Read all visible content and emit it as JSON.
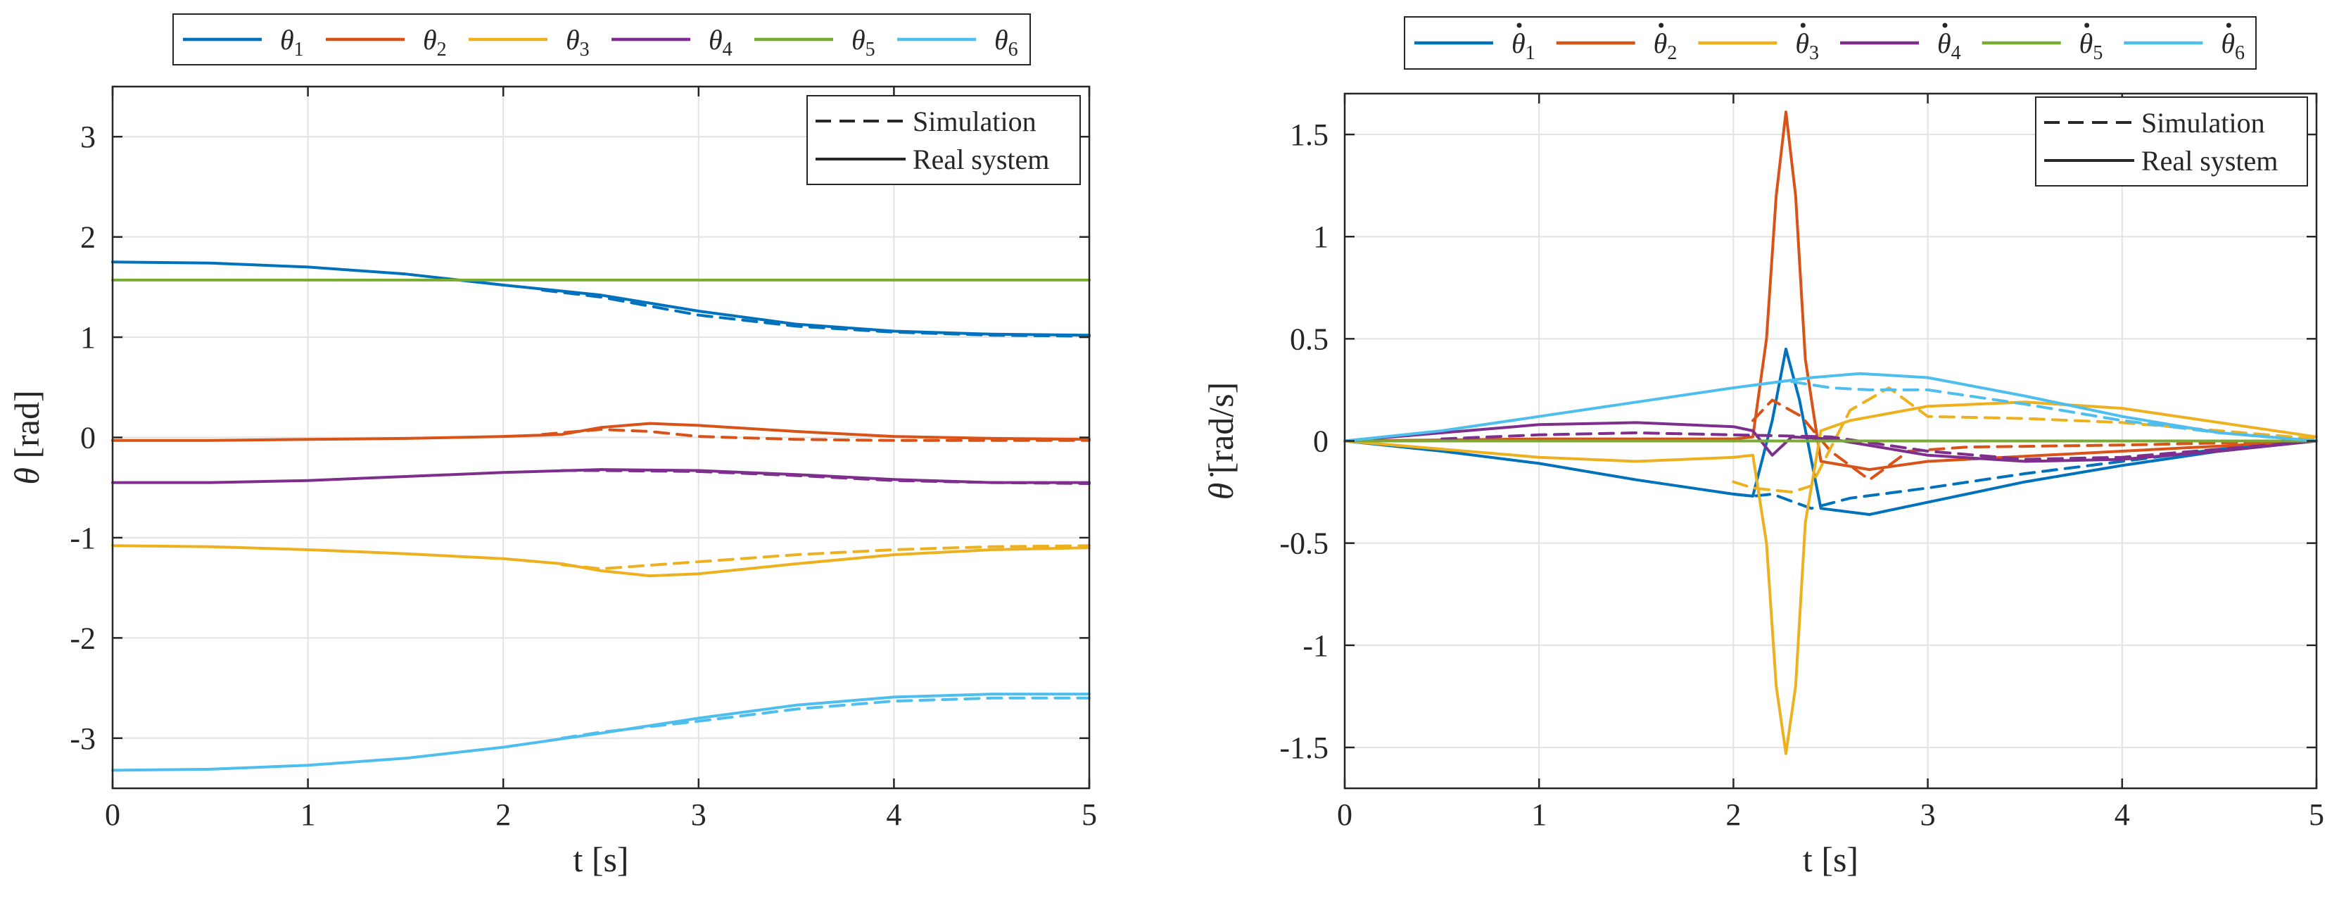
{
  "chart_data": [
    {
      "type": "line",
      "name": "joint-angles",
      "xlabel": "t [s]",
      "ylabel_symbol": "θ",
      "ylabel_unit": " [rad]",
      "xlim": [
        0,
        5
      ],
      "ylim": [
        -3.5,
        3.5
      ],
      "xticks": [
        0,
        1,
        2,
        3,
        4,
        5
      ],
      "xtick_labels": [
        "0",
        "1",
        "2",
        "3",
        "4",
        "5"
      ],
      "yticks": [
        -3,
        -2,
        -1,
        0,
        1,
        2,
        3
      ],
      "ytick_labels": [
        "-3",
        "-2",
        "-1",
        "0",
        "1",
        "2",
        "3"
      ],
      "grid": true,
      "legend_placement": "above",
      "style_legend_placement": "top-right",
      "series_legend": [
        {
          "base": "θ",
          "sub": "1",
          "dot": false,
          "color": "#0072BD"
        },
        {
          "base": "θ",
          "sub": "2",
          "dot": false,
          "color": "#D95319"
        },
        {
          "base": "θ",
          "sub": "3",
          "dot": false,
          "color": "#EDB120"
        },
        {
          "base": "θ",
          "sub": "4",
          "dot": false,
          "color": "#7E2F8E"
        },
        {
          "base": "θ",
          "sub": "5",
          "dot": false,
          "color": "#77AC30"
        },
        {
          "base": "θ",
          "sub": "6",
          "dot": false,
          "color": "#4DBEEE"
        }
      ],
      "style_legend": [
        {
          "label": "Simulation",
          "dashed": true
        },
        {
          "label": "Real system",
          "dashed": false
        }
      ],
      "series": [
        {
          "name": "θ1 Real system",
          "color": "#0072BD",
          "dashed": false,
          "x": [
            0,
            0.5,
            1,
            1.5,
            2,
            2.5,
            3,
            3.5,
            4,
            4.5,
            5
          ],
          "y": [
            1.75,
            1.74,
            1.7,
            1.63,
            1.52,
            1.42,
            1.26,
            1.13,
            1.06,
            1.03,
            1.02
          ]
        },
        {
          "name": "θ1 Simulation",
          "color": "#0072BD",
          "dashed": true,
          "x": [
            2.2,
            2.5,
            3,
            3.5,
            4,
            4.5,
            5
          ],
          "y": [
            1.47,
            1.4,
            1.22,
            1.11,
            1.05,
            1.02,
            1.01
          ]
        },
        {
          "name": "θ2 Real system",
          "color": "#D95319",
          "dashed": false,
          "x": [
            0,
            0.5,
            1,
            1.5,
            2,
            2.3,
            2.5,
            2.75,
            3,
            3.5,
            4,
            4.5,
            5
          ],
          "y": [
            -0.03,
            -0.03,
            -0.02,
            -0.01,
            0.01,
            0.03,
            0.1,
            0.14,
            0.12,
            0.06,
            0.01,
            -0.01,
            -0.02
          ]
        },
        {
          "name": "θ2 Simulation",
          "color": "#D95319",
          "dashed": true,
          "x": [
            2.2,
            2.5,
            2.75,
            3,
            3.5,
            4,
            4.5,
            5
          ],
          "y": [
            0.03,
            0.08,
            0.06,
            0.01,
            -0.02,
            -0.03,
            -0.03,
            -0.03
          ]
        },
        {
          "name": "θ3 Real system",
          "color": "#EDB120",
          "dashed": false,
          "x": [
            0,
            0.5,
            1,
            1.5,
            2,
            2.3,
            2.5,
            2.75,
            3,
            3.5,
            4,
            4.5,
            5
          ],
          "y": [
            -1.08,
            -1.09,
            -1.12,
            -1.16,
            -1.21,
            -1.26,
            -1.33,
            -1.38,
            -1.36,
            -1.26,
            -1.17,
            -1.12,
            -1.1
          ]
        },
        {
          "name": "θ3 Simulation",
          "color": "#EDB120",
          "dashed": true,
          "x": [
            2.3,
            2.5,
            3,
            3.5,
            4,
            4.5,
            5
          ],
          "y": [
            -1.27,
            -1.31,
            -1.24,
            -1.17,
            -1.12,
            -1.09,
            -1.08
          ]
        },
        {
          "name": "θ4 Real system",
          "color": "#7E2F8E",
          "dashed": false,
          "x": [
            0,
            0.5,
            1,
            1.5,
            2,
            2.5,
            3,
            3.5,
            4,
            4.5,
            5
          ],
          "y": [
            -0.45,
            -0.45,
            -0.43,
            -0.39,
            -0.35,
            -0.32,
            -0.33,
            -0.37,
            -0.42,
            -0.45,
            -0.45
          ]
        },
        {
          "name": "θ4 Simulation",
          "color": "#7E2F8E",
          "dashed": true,
          "x": [
            2.3,
            2.5,
            3,
            3.5,
            4,
            4.5,
            5
          ],
          "y": [
            -0.33,
            -0.33,
            -0.34,
            -0.38,
            -0.43,
            -0.45,
            -0.46
          ]
        },
        {
          "name": "θ5 Real system",
          "color": "#77AC30",
          "dashed": false,
          "x": [
            0,
            5
          ],
          "y": [
            1.57,
            1.57
          ]
        },
        {
          "name": "θ6 Real system",
          "color": "#4DBEEE",
          "dashed": false,
          "x": [
            0,
            0.5,
            1,
            1.5,
            2,
            2.5,
            3,
            3.5,
            4,
            4.5,
            5
          ],
          "y": [
            -3.32,
            -3.31,
            -3.27,
            -3.2,
            -3.09,
            -2.95,
            -2.8,
            -2.67,
            -2.59,
            -2.56,
            -2.56
          ]
        },
        {
          "name": "θ6 Simulation",
          "color": "#4DBEEE",
          "dashed": true,
          "x": [
            2.3,
            2.5,
            3,
            3.5,
            4,
            4.5,
            5
          ],
          "y": [
            -3.0,
            -2.94,
            -2.83,
            -2.71,
            -2.63,
            -2.6,
            -2.6
          ]
        }
      ]
    },
    {
      "type": "line",
      "name": "joint-velocities",
      "xlabel": "t [s]",
      "ylabel_symbol": "θ̇",
      "ylabel_unit": " [rad/s]",
      "xlim": [
        0,
        5
      ],
      "ylim": [
        -1.7,
        1.7
      ],
      "xticks": [
        0,
        1,
        2,
        3,
        4,
        5
      ],
      "xtick_labels": [
        "0",
        "1",
        "2",
        "3",
        "4",
        "5"
      ],
      "yticks": [
        -1.5,
        -1,
        -0.5,
        0,
        0.5,
        1,
        1.5
      ],
      "ytick_labels": [
        "-1.5",
        "-1",
        "-0.5",
        "0",
        "0.5",
        "1",
        "1.5"
      ],
      "grid": true,
      "legend_placement": "above",
      "style_legend_placement": "top-right",
      "series_legend": [
        {
          "base": "θ",
          "sub": "1",
          "dot": true,
          "color": "#0072BD"
        },
        {
          "base": "θ",
          "sub": "2",
          "dot": true,
          "color": "#D95319"
        },
        {
          "base": "θ",
          "sub": "3",
          "dot": true,
          "color": "#EDB120"
        },
        {
          "base": "θ",
          "sub": "4",
          "dot": true,
          "color": "#7E2F8E"
        },
        {
          "base": "θ",
          "sub": "5",
          "dot": true,
          "color": "#77AC30"
        },
        {
          "base": "θ",
          "sub": "6",
          "dot": true,
          "color": "#4DBEEE"
        }
      ],
      "style_legend": [
        {
          "label": "Simulation",
          "dashed": true
        },
        {
          "label": "Real system",
          "dashed": false
        }
      ],
      "series": [
        {
          "name": "θ̇1 Real system",
          "color": "#0072BD",
          "dashed": false,
          "x": [
            0,
            0.5,
            1,
            1.5,
            2,
            2.1,
            2.2,
            2.27,
            2.34,
            2.45,
            2.7,
            3,
            3.5,
            4,
            4.5,
            5
          ],
          "y": [
            0,
            -0.05,
            -0.11,
            -0.19,
            -0.26,
            -0.27,
            0.1,
            0.45,
            0.2,
            -0.33,
            -0.36,
            -0.3,
            -0.2,
            -0.12,
            -0.05,
            0
          ]
        },
        {
          "name": "θ̇1 Simulation",
          "color": "#0072BD",
          "dashed": true,
          "x": [
            2.0,
            2.1,
            2.2,
            2.4,
            2.6,
            3.0,
            3.5,
            4.0,
            4.5,
            5.0
          ],
          "y": [
            -0.26,
            -0.27,
            -0.26,
            -0.33,
            -0.28,
            -0.23,
            -0.16,
            -0.1,
            -0.04,
            0
          ]
        },
        {
          "name": "θ̇2 Real system",
          "color": "#D95319",
          "dashed": false,
          "x": [
            0,
            1,
            2,
            2.1,
            2.17,
            2.22,
            2.27,
            2.32,
            2.37,
            2.45,
            2.7,
            3,
            4,
            5
          ],
          "y": [
            0,
            0.01,
            0.01,
            0.02,
            0.5,
            1.2,
            1.61,
            1.2,
            0.4,
            -0.1,
            -0.14,
            -0.1,
            -0.05,
            0
          ]
        },
        {
          "name": "θ̇2 Simulation",
          "color": "#D95319",
          "dashed": true,
          "x": [
            2.1,
            2.2,
            2.35,
            2.5,
            2.7,
            2.9,
            3.2,
            4.0,
            4.5,
            5.0
          ],
          "y": [
            0.1,
            0.2,
            0.12,
            -0.05,
            -0.19,
            -0.05,
            -0.03,
            -0.02,
            -0.01,
            0
          ]
        },
        {
          "name": "θ̇3 Real system",
          "color": "#EDB120",
          "dashed": false,
          "x": [
            0,
            0.5,
            1,
            1.5,
            2,
            2.1,
            2.17,
            2.22,
            2.27,
            2.32,
            2.37,
            2.45,
            2.6,
            3,
            3.5,
            4,
            4.5,
            5
          ],
          "y": [
            0,
            -0.04,
            -0.08,
            -0.1,
            -0.08,
            -0.07,
            -0.5,
            -1.2,
            -1.53,
            -1.2,
            -0.4,
            0.05,
            0.1,
            0.17,
            0.19,
            0.16,
            0.09,
            0.02
          ]
        },
        {
          "name": "θ̇3 Simulation",
          "color": "#EDB120",
          "dashed": true,
          "x": [
            2.0,
            2.1,
            2.3,
            2.4,
            2.6,
            2.8,
            3.0,
            3.5,
            4.0,
            4.5,
            5.0
          ],
          "y": [
            -0.2,
            -0.23,
            -0.25,
            -0.22,
            0.15,
            0.26,
            0.12,
            0.11,
            0.09,
            0.05,
            0.01
          ]
        },
        {
          "name": "θ̇4 Real system",
          "color": "#7E2F8E",
          "dashed": false,
          "x": [
            0,
            0.5,
            1,
            1.5,
            2,
            2.1,
            2.2,
            2.3,
            2.5,
            3,
            3.5,
            4,
            4.5,
            5
          ],
          "y": [
            0,
            0.04,
            0.08,
            0.09,
            0.07,
            0.05,
            -0.07,
            0.02,
            0.01,
            -0.07,
            -0.1,
            -0.09,
            -0.05,
            0
          ]
        },
        {
          "name": "θ̇4 Simulation",
          "color": "#7E2F8E",
          "dashed": true,
          "x": [
            0.5,
            1,
            1.5,
            2,
            2.5,
            3,
            3.5,
            4,
            4.5,
            5
          ],
          "y": [
            0.01,
            0.03,
            0.04,
            0.03,
            0.02,
            -0.05,
            -0.09,
            -0.08,
            -0.04,
            0
          ]
        },
        {
          "name": "θ̇5 Real system",
          "color": "#77AC30",
          "dashed": false,
          "x": [
            0,
            5
          ],
          "y": [
            0,
            0
          ]
        },
        {
          "name": "θ̇6 Real system",
          "color": "#4DBEEE",
          "dashed": false,
          "x": [
            0,
            0.5,
            1,
            1.5,
            2,
            2.4,
            2.65,
            3,
            3.5,
            4,
            4.5,
            5
          ],
          "y": [
            0,
            0.05,
            0.12,
            0.19,
            0.26,
            0.31,
            0.33,
            0.31,
            0.22,
            0.12,
            0.04,
            0
          ]
        },
        {
          "name": "θ̇6 Simulation",
          "color": "#4DBEEE",
          "dashed": true,
          "x": [
            2.3,
            2.5,
            2.7,
            3.0,
            3.5,
            4.0,
            4.5,
            5.0
          ],
          "y": [
            0.29,
            0.26,
            0.25,
            0.25,
            0.18,
            0.1,
            0.04,
            0
          ]
        }
      ]
    }
  ]
}
